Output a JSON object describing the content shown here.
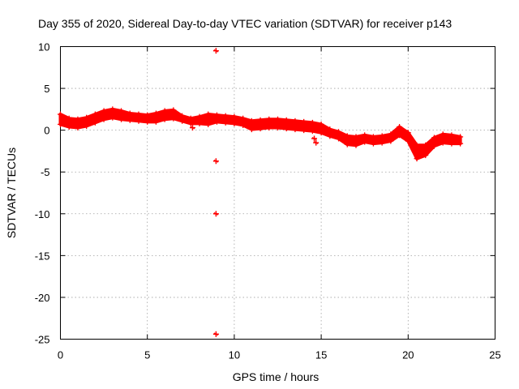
{
  "chart_data": {
    "type": "scatter",
    "title": "Day 355 of 2020, Sidereal Day-to-day VTEC variation (SDTVAR) for receiver p143",
    "xlabel": "GPS time / hours",
    "ylabel": "SDTVAR / TECUs",
    "xlim": [
      0,
      25
    ],
    "ylim": [
      -25,
      10
    ],
    "xticks": [
      0,
      5,
      10,
      15,
      20,
      25
    ],
    "yticks": [
      10,
      5,
      0,
      -5,
      -10,
      -15,
      -20,
      -25
    ],
    "grid": true,
    "marker": "+",
    "color": "#ff0000",
    "band": {
      "description": "dense band of daily samples",
      "x": [
        0.0,
        0.5,
        1.0,
        1.5,
        2.0,
        2.5,
        3.0,
        3.5,
        4.0,
        4.5,
        5.0,
        5.5,
        6.0,
        6.5,
        7.0,
        7.5,
        8.0,
        8.5,
        9.0,
        9.5,
        10.0,
        10.5,
        11.0,
        11.5,
        12.0,
        12.5,
        13.0,
        13.5,
        14.0,
        14.5,
        15.0,
        15.5,
        16.0,
        16.5,
        17.0,
        17.5,
        18.0,
        18.5,
        19.0,
        19.5,
        20.0,
        20.5,
        21.0,
        21.5,
        22.0,
        22.5,
        23.0
      ],
      "center": [
        1.3,
        0.9,
        0.8,
        1.0,
        1.4,
        1.8,
        2.0,
        1.8,
        1.6,
        1.5,
        1.4,
        1.5,
        1.8,
        1.9,
        1.4,
        1.1,
        1.2,
        1.3,
        1.4,
        1.3,
        1.2,
        1.0,
        0.6,
        0.7,
        0.8,
        0.8,
        0.7,
        0.6,
        0.5,
        0.4,
        0.2,
        -0.3,
        -0.6,
        -1.2,
        -1.3,
        -1.0,
        -1.2,
        -1.1,
        -0.9,
        -0.1,
        -0.8,
        -2.6,
        -2.4,
        -1.4,
        -1.0,
        -1.1,
        -1.2
      ],
      "halfwidth": [
        0.6,
        0.5,
        0.5,
        0.5,
        0.5,
        0.5,
        0.5,
        0.5,
        0.4,
        0.4,
        0.4,
        0.5,
        0.5,
        0.5,
        0.3,
        0.3,
        0.4,
        0.6,
        0.4,
        0.4,
        0.4,
        0.4,
        0.5,
        0.5,
        0.5,
        0.5,
        0.5,
        0.5,
        0.5,
        0.5,
        0.5,
        0.4,
        0.4,
        0.5,
        0.5,
        0.4,
        0.4,
        0.4,
        0.4,
        0.5,
        0.5,
        0.8,
        0.6,
        0.5,
        0.5,
        0.5,
        0.4
      ]
    },
    "outliers": [
      {
        "x": 8.95,
        "y": 9.5
      },
      {
        "x": 8.95,
        "y": -3.7
      },
      {
        "x": 8.95,
        "y": -10.0
      },
      {
        "x": 8.95,
        "y": -24.4
      },
      {
        "x": 14.6,
        "y": -1.0
      },
      {
        "x": 14.7,
        "y": -1.5
      },
      {
        "x": 7.6,
        "y": 0.3
      }
    ]
  }
}
